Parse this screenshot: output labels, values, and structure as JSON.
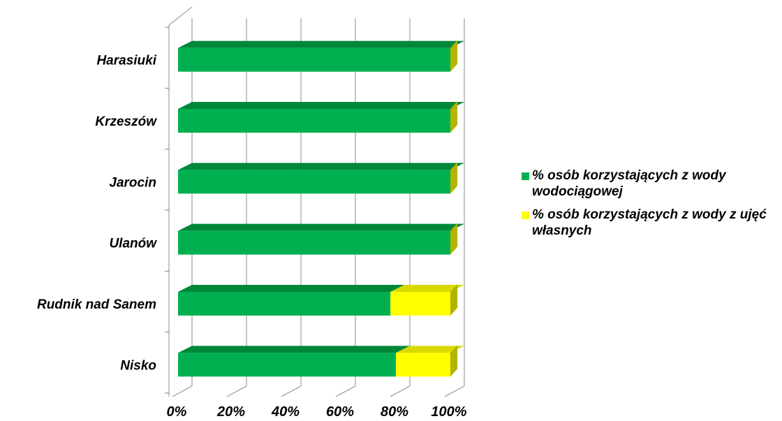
{
  "chart_data": {
    "type": "bar",
    "orientation": "horizontal",
    "stacked": true,
    "percent_stacked": true,
    "three_d": true,
    "categories": [
      "Harasiuki",
      "Krzeszów",
      "Jarocin",
      "Ulanów",
      "Rudnik nad Sanem",
      "Nisko"
    ],
    "series": [
      {
        "name": "% osób korzystających z wody wodociągowej",
        "values": [
          100,
          100,
          100,
          100,
          78,
          80
        ]
      },
      {
        "name": "% osób korzystających z wody z ujęć własnych",
        "values": [
          0,
          0,
          0,
          0,
          22,
          20
        ]
      }
    ],
    "xlim": [
      0,
      100
    ],
    "x_ticks": [
      "0%",
      "20%",
      "40%",
      "60%",
      "80%",
      "100%"
    ],
    "grid": true,
    "legend_position": "right",
    "colors": {
      "series_front": [
        "#00b050",
        "#ffff00"
      ],
      "series_top": [
        "#00873a",
        "#d9d900"
      ],
      "series_side": [
        "#007a33",
        "#b3b300"
      ],
      "grid": "#a6a6a6"
    },
    "title": "",
    "xlabel": "",
    "ylabel": ""
  }
}
